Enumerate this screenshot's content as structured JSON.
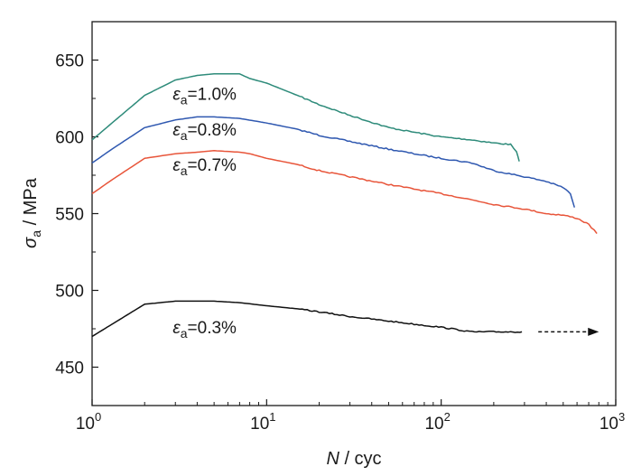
{
  "chart_data": {
    "type": "line",
    "x_scale": "log",
    "xlim": [
      1,
      1000
    ],
    "ylim": [
      425,
      675
    ],
    "x_ticks": [
      {
        "value": 1,
        "base": "10",
        "exp": "0"
      },
      {
        "value": 10,
        "base": "10",
        "exp": "1"
      },
      {
        "value": 100,
        "base": "10",
        "exp": "2"
      },
      {
        "value": 1000,
        "base": "10",
        "exp": "3"
      }
    ],
    "y_ticks": [
      {
        "value": 450,
        "label": "450"
      },
      {
        "value": 500,
        "label": "500"
      },
      {
        "value": 550,
        "label": "550"
      },
      {
        "value": 600,
        "label": "600"
      },
      {
        "value": 650,
        "label": "650"
      }
    ],
    "xlabel": {
      "var": "N",
      "unit": " / cyc"
    },
    "ylabel": {
      "var": "σ",
      "sub": "a",
      "unit": " / MPa"
    },
    "grid": false,
    "series": [
      {
        "color": "#2e8b7a",
        "label": {
          "sym": "ε",
          "sub": "a",
          "text": "=1.0%",
          "anchor_x": 2.9,
          "anchor_y": 624
        },
        "points": [
          [
            1,
            598
          ],
          [
            1.3,
            609
          ],
          [
            2,
            627
          ],
          [
            3,
            637
          ],
          [
            4,
            640
          ],
          [
            5,
            641
          ],
          [
            7,
            641
          ],
          [
            8,
            638
          ],
          [
            10,
            635
          ],
          [
            15,
            627
          ],
          [
            20,
            621
          ],
          [
            30,
            614
          ],
          [
            50,
            606
          ],
          [
            70,
            603
          ],
          [
            100,
            600
          ],
          [
            150,
            598
          ],
          [
            200,
            596
          ],
          [
            250,
            595
          ],
          [
            270,
            590
          ],
          [
            280,
            584
          ]
        ]
      },
      {
        "color": "#2f58b0",
        "label": {
          "sym": "ε",
          "sub": "a",
          "text": "=0.8%",
          "anchor_x": 2.9,
          "anchor_y": 601
        },
        "points": [
          [
            1,
            583
          ],
          [
            1.3,
            592
          ],
          [
            2,
            606
          ],
          [
            3,
            611
          ],
          [
            4,
            613
          ],
          [
            5,
            613
          ],
          [
            7,
            612
          ],
          [
            10,
            609
          ],
          [
            15,
            605
          ],
          [
            20,
            601
          ],
          [
            30,
            597
          ],
          [
            50,
            592
          ],
          [
            70,
            589
          ],
          [
            100,
            586
          ],
          [
            150,
            583
          ],
          [
            200,
            578
          ],
          [
            300,
            574
          ],
          [
            400,
            571
          ],
          [
            500,
            567
          ],
          [
            550,
            563
          ],
          [
            580,
            554
          ]
        ]
      },
      {
        "color": "#e8553a",
        "label": {
          "sym": "ε",
          "sub": "a",
          "text": "=0.7%",
          "anchor_x": 2.9,
          "anchor_y": 578
        },
        "points": [
          [
            1,
            563
          ],
          [
            1.3,
            572
          ],
          [
            2,
            586
          ],
          [
            3,
            589
          ],
          [
            4,
            590
          ],
          [
            5,
            591
          ],
          [
            7,
            590
          ],
          [
            8,
            589
          ],
          [
            10,
            586
          ],
          [
            15,
            582
          ],
          [
            20,
            578
          ],
          [
            30,
            574
          ],
          [
            50,
            569
          ],
          [
            70,
            566
          ],
          [
            100,
            563
          ],
          [
            150,
            559
          ],
          [
            200,
            556
          ],
          [
            300,
            553
          ],
          [
            400,
            550
          ],
          [
            500,
            549
          ],
          [
            600,
            547
          ],
          [
            700,
            543
          ],
          [
            780,
            537
          ]
        ]
      },
      {
        "color": "#111111",
        "label": {
          "sym": "ε",
          "sub": "a",
          "text": "=0.3%",
          "anchor_x": 2.9,
          "anchor_y": 472
        },
        "points": [
          [
            1,
            470
          ],
          [
            2,
            491
          ],
          [
            3,
            493
          ],
          [
            4,
            493
          ],
          [
            5,
            493
          ],
          [
            7,
            492
          ],
          [
            10,
            490
          ],
          [
            15,
            488
          ],
          [
            20,
            486
          ],
          [
            30,
            483
          ],
          [
            50,
            480
          ],
          [
            70,
            478
          ],
          [
            100,
            476
          ],
          [
            150,
            473
          ],
          [
            200,
            473
          ],
          [
            250,
            473
          ],
          [
            290,
            473
          ]
        ]
      }
    ],
    "annotations": [
      {
        "type": "dashed-arrow",
        "x1": 360,
        "x2": 800,
        "y": 473
      }
    ]
  }
}
